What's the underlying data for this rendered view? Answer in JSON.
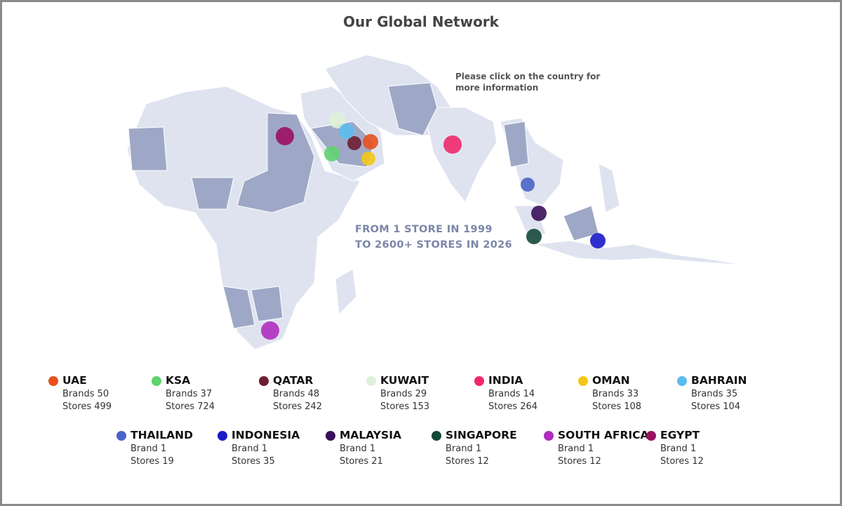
{
  "header": {
    "title": "Our Global Network"
  },
  "instruction": [
    "Please click on the country for",
    "more information"
  ],
  "tagline": [
    "FROM 1 STORE IN 1999",
    "TO 2600+ STORES IN 2026"
  ],
  "countries": [
    {
      "name": "UAE",
      "color": "#e8501e",
      "brands": "Brands 50",
      "stores": "Stores 499"
    },
    {
      "name": "KSA",
      "color": "#5ed36e",
      "brands": "Brands 37",
      "stores": "Stores 724"
    },
    {
      "name": "QATAR",
      "color": "#6b1e33",
      "brands": "Brands 48",
      "stores": "Stores 242"
    },
    {
      "name": "KUWAIT",
      "color": "#dff0d8",
      "brands": "Brands 29",
      "stores": "Stores 153"
    },
    {
      "name": "INDIA",
      "color": "#f0286b",
      "brands": "Brands 14",
      "stores": "Stores 264"
    },
    {
      "name": "OMAN",
      "color": "#f5c518",
      "brands": "Brands 33",
      "stores": "Stores 108"
    },
    {
      "name": "BAHRAIN",
      "color": "#5bbcf0",
      "brands": "Brands 35",
      "stores": "Stores 104"
    },
    {
      "name": "THAILAND",
      "color": "#4a63c8",
      "brands": "Brand 1",
      "stores": "Stores 19"
    },
    {
      "name": "INDONESIA",
      "color": "#1a1ac8",
      "brands": "Brand 1",
      "stores": "Stores 35"
    },
    {
      "name": "MALAYSIA",
      "color": "#3a0f5a",
      "brands": "Brand 1",
      "stores": "Stores 21"
    },
    {
      "name": "SINGAPORE",
      "color": "#15493a",
      "brands": "Brand 1",
      "stores": "Stores 12"
    },
    {
      "name": "SOUTH AFRICA",
      "color": "#b02cc0",
      "brands": "Brand 1",
      "stores": "Stores 12"
    },
    {
      "name": "EGYPT",
      "color": "#9a1060",
      "brands": "Brand 1",
      "stores": "Stores 12"
    }
  ]
}
